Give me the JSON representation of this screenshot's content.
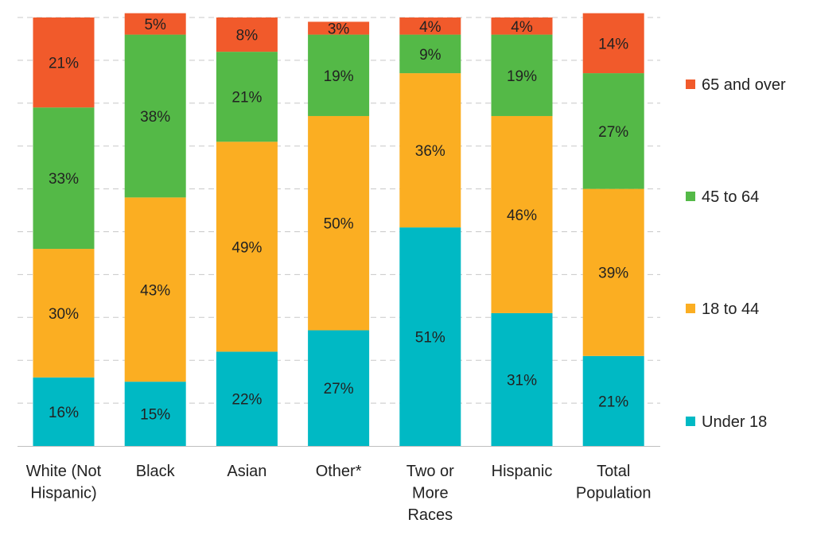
{
  "chart_data": {
    "type": "bar",
    "stacked": true,
    "percent": true,
    "ylim": [
      0,
      100
    ],
    "grid": true,
    "legend_position": "right",
    "categories": [
      "White (Not Hispanic)",
      "Black",
      "Asian",
      "Other*",
      "Two or More Races",
      "Hispanic",
      "Total Population"
    ],
    "category_lines": [
      [
        "White (Not",
        "Hispanic)"
      ],
      [
        "Black"
      ],
      [
        "Asian"
      ],
      [
        "Other*"
      ],
      [
        "Two or",
        "More",
        "Races"
      ],
      [
        "Hispanic"
      ],
      [
        "Total",
        "Population"
      ]
    ],
    "series": [
      {
        "name": "Under 18",
        "color": "#00b9c4",
        "values": [
          16,
          15,
          22,
          27,
          51,
          31,
          21
        ]
      },
      {
        "name": "18 to 44",
        "color": "#fbae22",
        "values": [
          30,
          43,
          49,
          50,
          36,
          46,
          39
        ]
      },
      {
        "name": "45 to 64",
        "color": "#54b947",
        "values": [
          33,
          38,
          21,
          19,
          9,
          19,
          27
        ]
      },
      {
        "name": "65 and over",
        "color": "#f15a2b",
        "values": [
          21,
          5,
          8,
          3,
          4,
          4,
          14
        ]
      }
    ],
    "value_format": "{v}%"
  }
}
